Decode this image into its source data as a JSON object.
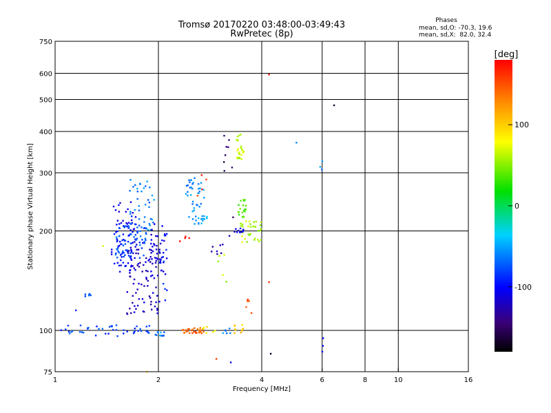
{
  "chart_data": {
    "type": "scatter",
    "title": "Tromsø 20170220 03:48:00-03:49:43",
    "subtitle": "RwPretec (8p)",
    "xlabel": "Frequency [MHz]",
    "ylabel": "Stationary phase Virtual Height [km]",
    "x_scale": "log",
    "y_scale": "log",
    "xlim": [
      1,
      16
    ],
    "ylim": [
      75,
      750
    ],
    "x_ticks": [
      1,
      2,
      4,
      6,
      8,
      10,
      16
    ],
    "x_tick_labels": [
      "1",
      "2",
      "4",
      "6",
      "8",
      "10",
      "16"
    ],
    "y_ticks": [
      75,
      100,
      200,
      300,
      400,
      500,
      600,
      750
    ],
    "y_tick_labels": [
      "75",
      "100",
      "200",
      "300",
      "400",
      "500",
      "600",
      "750"
    ],
    "x_gridlines": [
      2,
      4,
      6,
      8,
      10
    ],
    "y_gridlines": [
      100,
      200,
      300,
      400,
      500,
      600
    ],
    "colorbar": {
      "label": "[deg]",
      "range": [
        -180,
        180
      ],
      "ticks": [
        100,
        0,
        -100
      ],
      "tick_labels": [
        "100",
        "0",
        "-100"
      ]
    },
    "stats": {
      "title": "Phases",
      "line_o": "mean, sd,O: -70.3, 19.6",
      "line_x": "mean, sd,X:  82.0, 32.4"
    },
    "clusters": [
      {
        "x": [
          1.46,
          1.72
        ],
        "y": [
          150,
          245
        ],
        "phase": -105,
        "n": 80
      },
      {
        "x": [
          1.5,
          1.85
        ],
        "y": [
          165,
          215
        ],
        "phase": -75,
        "n": 70
      },
      {
        "x": [
          1.65,
          1.95
        ],
        "y": [
          200,
          290
        ],
        "phase": -60,
        "n": 35
      },
      {
        "x": [
          1.62,
          2.02
        ],
        "y": [
          112,
          185
        ],
        "phase": -120,
        "n": 85
      },
      {
        "x": [
          1.9,
          2.1
        ],
        "y": [
          150,
          210
        ],
        "phase": -110,
        "n": 30
      },
      {
        "x": [
          2.0,
          2.12
        ],
        "y": [
          120,
          200
        ],
        "phase": -95,
        "n": 18
      },
      {
        "x": [
          1.22,
          1.3
        ],
        "y": [
          126,
          130
        ],
        "phase": -80,
        "n": 6
      },
      {
        "x": [
          1.04,
          1.95
        ],
        "y": [
          96,
          104
        ],
        "phase": -80,
        "n": 45
      },
      {
        "x": [
          1.95,
          2.1
        ],
        "y": [
          95,
          99
        ],
        "phase": -60,
        "n": 12
      },
      {
        "x": [
          2.35,
          2.72
        ],
        "y": [
          98,
          102
        ],
        "phase": 140,
        "n": 30
      },
      {
        "x": [
          2.7,
          3.05
        ],
        "y": [
          98,
          103
        ],
        "phase": 90,
        "n": 8
      },
      {
        "x": [
          3.05,
          3.25
        ],
        "y": [
          98,
          103
        ],
        "phase": -60,
        "n": 6
      },
      {
        "x": [
          3.3,
          3.55
        ],
        "y": [
          98,
          104
        ],
        "phase": 100,
        "n": 10
      },
      {
        "x": [
          2.4,
          2.72
        ],
        "y": [
          210,
          290
        ],
        "phase": -60,
        "n": 40
      },
      {
        "x": [
          2.55,
          2.82
        ],
        "y": [
          210,
          222
        ],
        "phase": -50,
        "n": 12
      },
      {
        "x": [
          2.6,
          2.8
        ],
        "y": [
          255,
          300
        ],
        "phase": 160,
        "n": 4
      },
      {
        "x": [
          3.38,
          3.55
        ],
        "y": [
          325,
          395
        ],
        "phase": 65,
        "n": 25
      },
      {
        "x": [
          3.4,
          3.6
        ],
        "y": [
          220,
          250
        ],
        "phase": 40,
        "n": 20
      },
      {
        "x": [
          3.45,
          4.0
        ],
        "y": [
          185,
          215
        ],
        "phase": 60,
        "n": 35
      },
      {
        "x": [
          3.3,
          3.55
        ],
        "y": [
          198,
          205
        ],
        "phase": -110,
        "n": 10
      },
      {
        "x": [
          3.1,
          3.3
        ],
        "y": [
          290,
          390
        ],
        "phase": -150,
        "n": 8
      },
      {
        "x": [
          2.85,
          3.25
        ],
        "y": [
          165,
          195
        ],
        "phase": -120,
        "n": 8
      },
      {
        "x": [
          2.9,
          3.2
        ],
        "y": [
          140,
          170
        ],
        "phase": 60,
        "n": 5
      },
      {
        "x": [
          3.45,
          3.8
        ],
        "y": [
          110,
          125
        ],
        "phase": 150,
        "n": 5
      },
      {
        "x": [
          2.3,
          2.5
        ],
        "y": [
          185,
          195
        ],
        "phase": 170,
        "n": 4
      },
      {
        "x": [
          5.9,
          6.05
        ],
        "y": [
          300,
          340
        ],
        "phase": -60,
        "n": 3
      },
      {
        "x": [
          5.95,
          6.05
        ],
        "y": [
          83,
          98
        ],
        "phase": -100,
        "n": 3
      }
    ],
    "points": [
      {
        "x": 4.2,
        "y": 595,
        "phase": 170
      },
      {
        "x": 6.5,
        "y": 480,
        "phase": -170
      },
      {
        "x": 5.05,
        "y": 370,
        "phase": -60
      },
      {
        "x": 4.25,
        "y": 85,
        "phase": -170
      },
      {
        "x": 4.2,
        "y": 140,
        "phase": 160
      },
      {
        "x": 2.95,
        "y": 82,
        "phase": 160
      },
      {
        "x": 3.25,
        "y": 80,
        "phase": -100
      },
      {
        "x": 1.38,
        "y": 180,
        "phase": 70
      },
      {
        "x": 1.15,
        "y": 115,
        "phase": -90
      },
      {
        "x": 1.85,
        "y": 75,
        "phase": 100
      },
      {
        "x": 3.3,
        "y": 220,
        "phase": -150
      }
    ]
  }
}
